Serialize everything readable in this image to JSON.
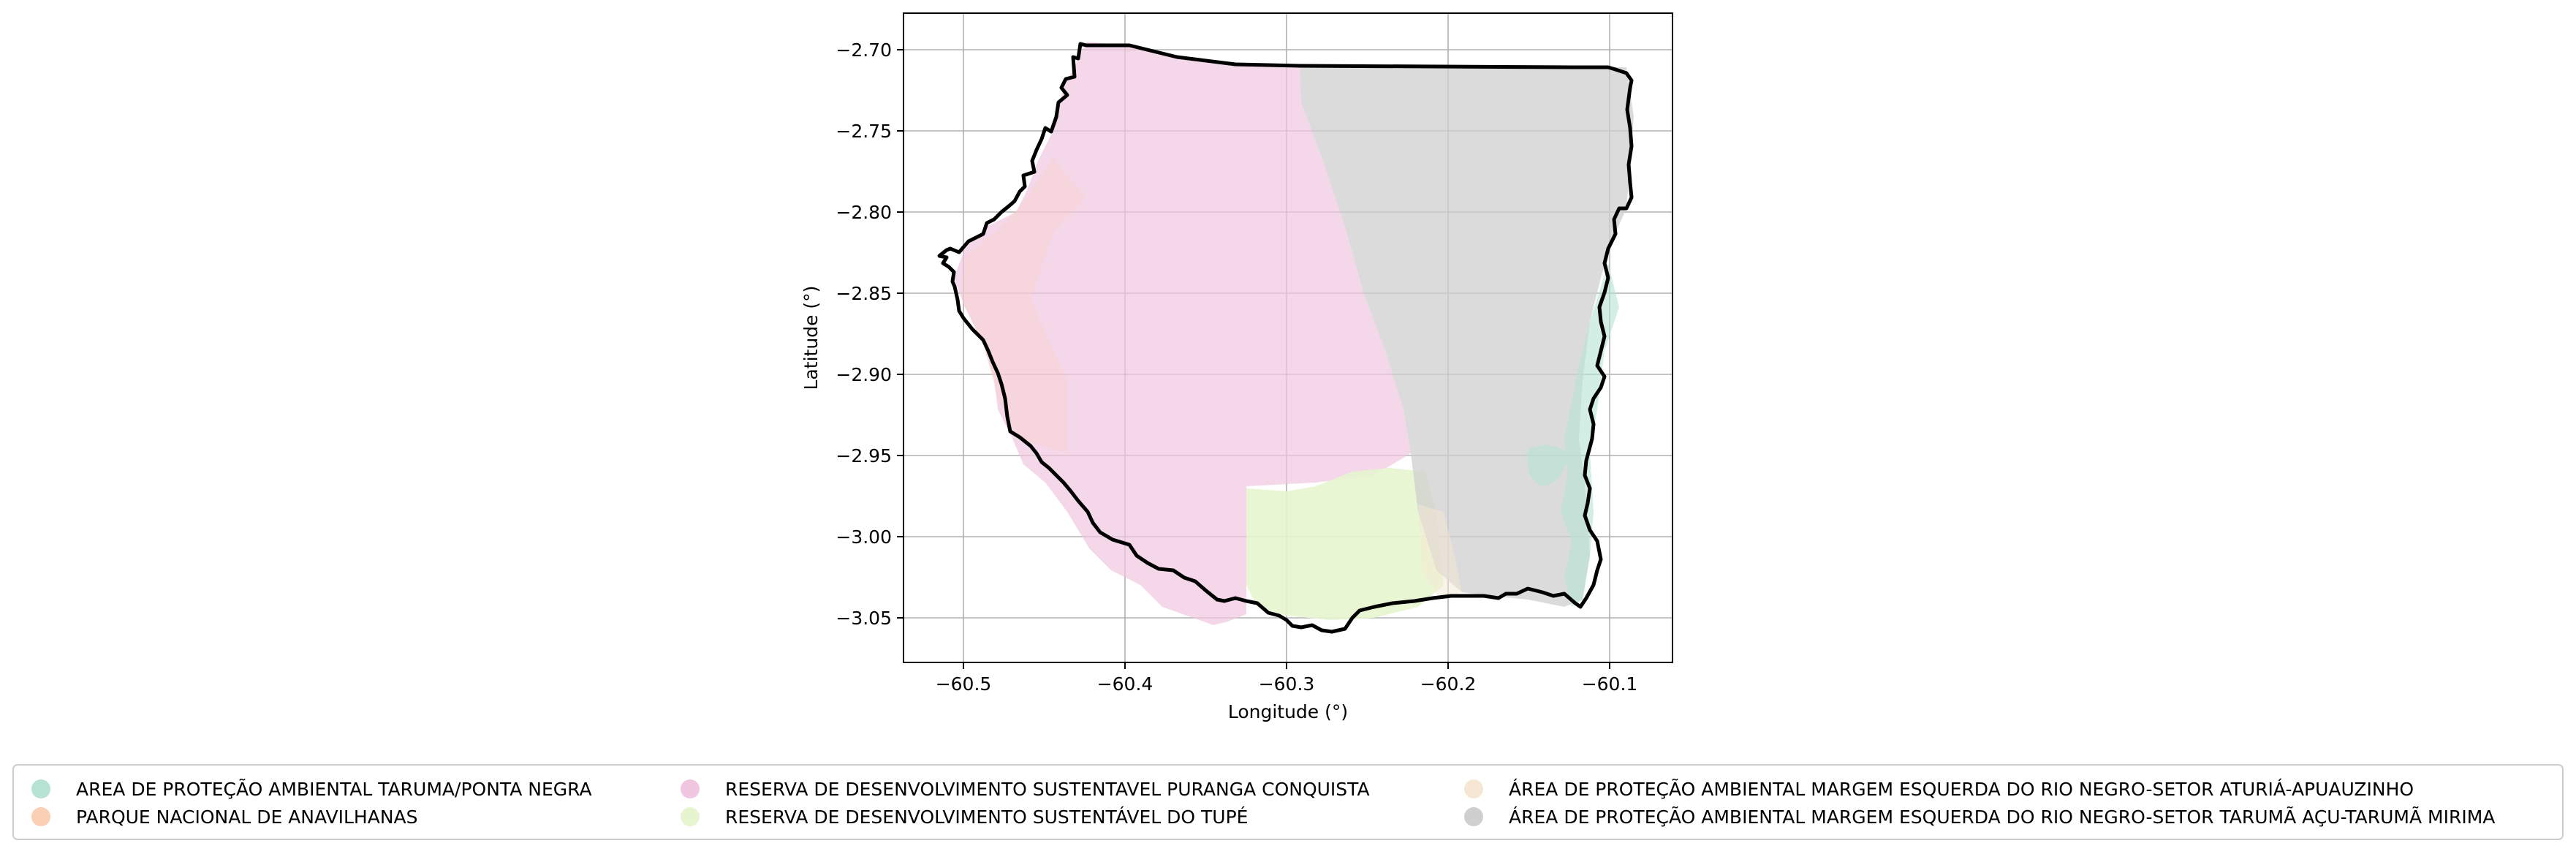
{
  "map": {
    "x_axis": {
      "label": "Longitude (°)",
      "ticks": [
        {
          "value": -60.5,
          "label": "−60.5"
        },
        {
          "value": -60.4,
          "label": "−60.4"
        },
        {
          "value": -60.3,
          "label": "−60.3"
        },
        {
          "value": -60.2,
          "label": "−60.2"
        },
        {
          "value": -60.1,
          "label": "−60.1"
        }
      ]
    },
    "y_axis": {
      "label": "Latitude (°)",
      "ticks": [
        {
          "value": -2.7,
          "label": "−2.70"
        },
        {
          "value": -2.75,
          "label": "−2.75"
        },
        {
          "value": -2.8,
          "label": "−2.80"
        },
        {
          "value": -2.85,
          "label": "−2.85"
        },
        {
          "value": -2.9,
          "label": "−2.90"
        },
        {
          "value": -2.95,
          "label": "−2.95"
        },
        {
          "value": -3.0,
          "label": "−3.00"
        },
        {
          "value": -3.05,
          "label": "−3.05"
        }
      ]
    },
    "grid": true,
    "legend_position": "bottom",
    "legend": [
      {
        "label": "AREA DE PROTEÇÃO AMBIENTAL TARUMA/PONTA NEGRA",
        "color": "#b6e3d4"
      },
      {
        "label": "PARQUE NACIONAL DE ANAVILHANAS",
        "color": "#fbcfb4"
      },
      {
        "label": "RESERVA DE DESENVOLVIMENTO SUSTENTAVEL PURANGA CONQUISTA",
        "color": "#f1c6e1"
      },
      {
        "label": "RESERVA DE DESENVOLVIMENTO SUSTENTÁVEL DO TUPÉ",
        "color": "#e6f5cf"
      },
      {
        "label": "ÁREA DE PROTEÇÃO AMBIENTAL MARGEM ESQUERDA DO RIO NEGRO-SETOR ATURIÁ-APUAUZINHO",
        "color": "#f5e7d4"
      },
      {
        "label": "ÁREA DE PROTEÇÃO AMBIENTAL MARGEM ESQUERDA DO RIO NEGRO-SETOR TARUMÃ AÇU-TARUMÃ MIRIMA",
        "color": "#cfcfcf"
      }
    ]
  }
}
